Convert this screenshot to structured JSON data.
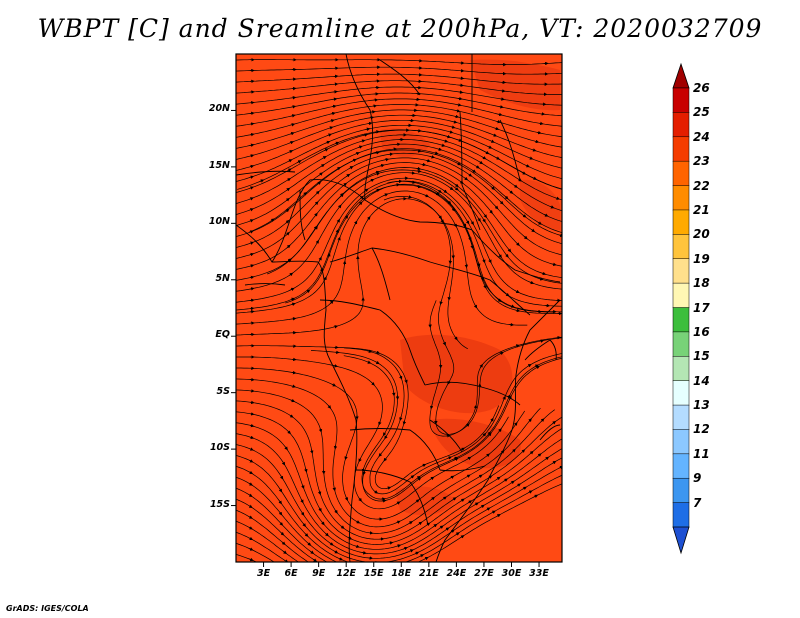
{
  "title": "WBPT [C] and Sreamline at 200hPa, VT: 2020032709",
  "credit": "GrADS: IGES/COLA",
  "map": {
    "lon_range": [
      0,
      35.5
    ],
    "lat_range": [
      -20,
      25
    ],
    "fill_color": "#ff4a14",
    "patch_color": "#e8380f",
    "lon_ticks": [
      "3E",
      "6E",
      "9E",
      "12E",
      "15E",
      "18E",
      "21E",
      "24E",
      "27E",
      "30E",
      "33E"
    ],
    "lat_ticks": [
      "20N",
      "15N",
      "10N",
      "5N",
      "EQ",
      "5S",
      "10S",
      "15S"
    ]
  },
  "colorbar": {
    "labels": [
      "26",
      "25",
      "24",
      "23",
      "22",
      "21",
      "20",
      "19",
      "18",
      "17",
      "16",
      "15",
      "14",
      "13",
      "12",
      "11",
      "9",
      "7"
    ],
    "colors": [
      "#c80000",
      "#e41e00",
      "#f53c00",
      "#ff6400",
      "#ff8c00",
      "#ffaa00",
      "#ffc43c",
      "#ffe08c",
      "#fff7b4",
      "#3cbe3c",
      "#78d278",
      "#b4e6b4",
      "#e6ffff",
      "#b4dcff",
      "#8cc8ff",
      "#64b4ff",
      "#3c96f0",
      "#1e6ee6"
    ],
    "top_cap": "#a00000",
    "bottom_cap": "#1e50d2"
  }
}
